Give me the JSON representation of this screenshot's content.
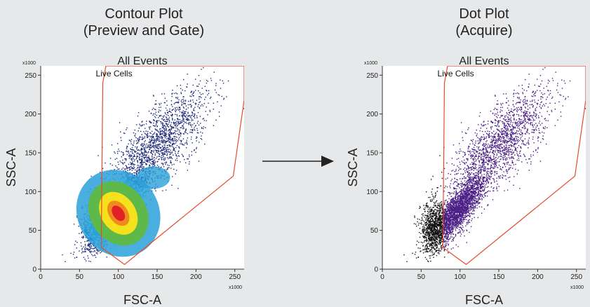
{
  "panels": [
    {
      "heading_line1": "Contour Plot",
      "heading_line2": "(Preview and Gate)"
    },
    {
      "heading_line1": "Dot Plot",
      "heading_line2": "(Acquire)"
    }
  ],
  "colors": {
    "background": "#e7e8e9",
    "plot_bg": "#ffffff",
    "gate": "#e64b2e",
    "density_low": "#1f2a7a",
    "density_mid": "#2aa0d8",
    "density_green": "#5fb84a",
    "density_yellow": "#f5e21c",
    "density_high": "#e01f26",
    "dot_gated": "#4b1e86",
    "dot_ungated": "#111111",
    "arrow": "#222222"
  },
  "chart_data": [
    {
      "type": "scatter",
      "style": "contour-density",
      "title": "All Events",
      "xlabel": "FSC-A",
      "ylabel": "SSC-A",
      "x_multiplier": "x1000",
      "y_multiplier": "x1000",
      "xlim": [
        0,
        262
      ],
      "ylim": [
        0,
        262
      ],
      "x_ticks": [
        0,
        50,
        100,
        150,
        200,
        250
      ],
      "y_ticks": [
        0,
        50,
        100,
        150,
        200,
        250
      ],
      "grid": false,
      "gate": {
        "name": "Live Cells",
        "polygon": [
          [
            80,
            240
          ],
          [
            84,
            262
          ],
          [
            262,
            262
          ],
          [
            262,
            218
          ],
          [
            248,
            120
          ],
          [
            108,
            6
          ],
          [
            78,
            28
          ]
        ]
      },
      "populations": [
        {
          "name": "",
          "x_mean": 95,
          "y_mean": 75,
          "n": 2600
        },
        {
          "name": "",
          "x_mean": 150,
          "y_mean": 160,
          "n": 1800
        },
        {
          "name": "",
          "x_mean": 70,
          "y_mean": 55,
          "n": 600
        }
      ],
      "density_peak": [
        100,
        68
      ]
    },
    {
      "type": "scatter",
      "style": "dot",
      "title": "All Events",
      "xlabel": "FSC-A",
      "ylabel": "SSC-A",
      "x_multiplier": "x1000",
      "y_multiplier": "x1000",
      "xlim": [
        0,
        262
      ],
      "ylim": [
        0,
        262
      ],
      "x_ticks": [
        0,
        50,
        100,
        150,
        200,
        250
      ],
      "y_ticks": [
        0,
        50,
        100,
        150,
        200,
        250
      ],
      "grid": false,
      "gate": {
        "name": "Live Cells",
        "polygon": [
          [
            80,
            240
          ],
          [
            84,
            262
          ],
          [
            262,
            262
          ],
          [
            262,
            218
          ],
          [
            248,
            120
          ],
          [
            108,
            6
          ],
          [
            78,
            28
          ]
        ]
      },
      "populations": [
        {
          "name": "",
          "x_mean": 95,
          "y_mean": 75,
          "n": 2600
        },
        {
          "name": "",
          "x_mean": 150,
          "y_mean": 160,
          "n": 1800
        },
        {
          "name": "",
          "x_mean": 65,
          "y_mean": 55,
          "n": 700
        }
      ]
    }
  ]
}
